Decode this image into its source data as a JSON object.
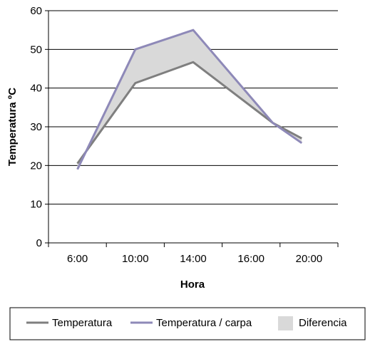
{
  "chart_data": {
    "type": "line",
    "title": "",
    "xlabel": "Hora",
    "ylabel": "Temperatura ºC",
    "categories": [
      "6:00",
      "10:00",
      "14:00",
      "16:00",
      "20:00"
    ],
    "ylim": [
      0,
      60
    ],
    "yticks": [
      0,
      10,
      20,
      30,
      40,
      50,
      60
    ],
    "grid": true,
    "legend_position": "bottom",
    "series": [
      {
        "name": "Temperatura",
        "color": "#7f7f7f",
        "x": [
          6,
          10,
          14,
          19.5,
          21.5
        ],
        "values": [
          20.5,
          41.3,
          46.7,
          31.0,
          27.0
        ]
      },
      {
        "name": "Temperatura / carpa",
        "color": "#8e89b8",
        "x": [
          6,
          10,
          14,
          19.5,
          21.5
        ],
        "values": [
          19.0,
          50.0,
          55.0,
          31.0,
          25.8
        ]
      }
    ],
    "difference_area": {
      "name": "Diferencia",
      "color": "#d9d9d9"
    },
    "x_tick_hours": [
      6,
      10,
      14,
      18,
      22
    ]
  }
}
